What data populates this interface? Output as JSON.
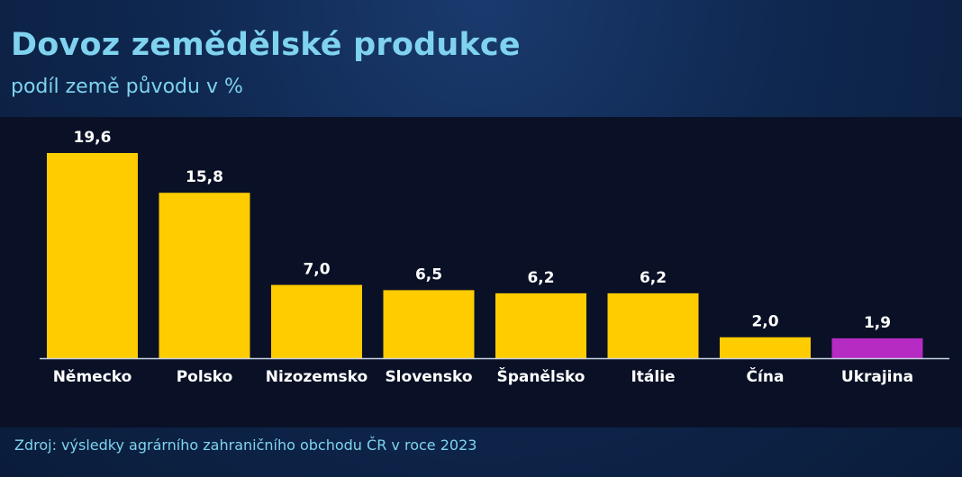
{
  "chart_data": {
    "type": "bar",
    "title": "Dovoz zemědělské produkce",
    "subtitle": "podíl země původu v %",
    "categories": [
      "Německo",
      "Polsko",
      "Nizozemsko",
      "Slovensko",
      "Španělsko",
      "Itálie",
      "Čína",
      "Ukrajina"
    ],
    "values": [
      19.6,
      15.8,
      7.0,
      6.5,
      6.2,
      6.2,
      2.0,
      1.9
    ],
    "value_labels": [
      "19,6",
      "15,8",
      "7,0",
      "6,5",
      "6,2",
      "6,2",
      "2,0",
      "1,9"
    ],
    "colors": [
      "#ffcc00",
      "#ffcc00",
      "#ffcc00",
      "#ffcc00",
      "#ffcc00",
      "#ffcc00",
      "#ffcc00",
      "#b62bc2"
    ],
    "xlabel": "",
    "ylabel": "",
    "ylim": [
      0,
      19.6
    ],
    "grid": false,
    "legend": "none"
  },
  "source": "Zdroj: výsledky agrárního zahraničního obchodu ČR v roce 2023"
}
